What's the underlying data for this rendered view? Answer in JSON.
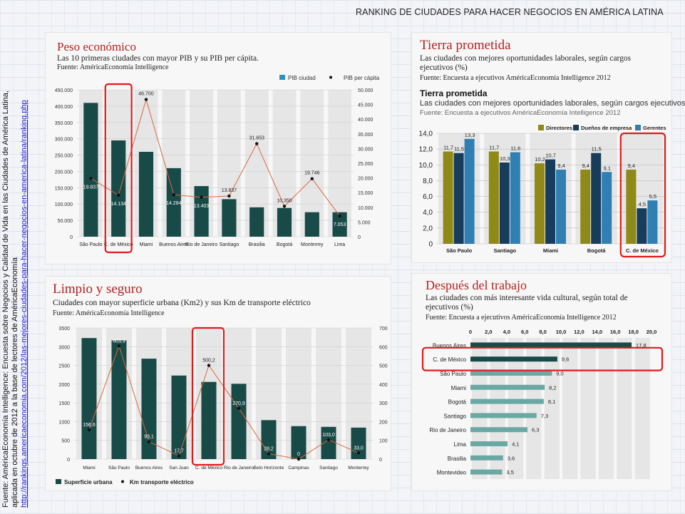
{
  "page": {
    "title": "RANKING DE CIUDADES PARA HACER NEGOCIOS EN AMÉRICA LATINA",
    "source_lines": [
      "Fuente: AméricaEconomía Intelligence: Encuesta sobre Negocios y Calidad de Vida en las Ciudades de América Latina,",
      "aplicada en octubre de 2012 a la base de lectores de AméricaEconomía",
      "http://rankings.americaeconomia.com/2012/las-mejores-ciudades-para-hacer-negocios-en-america-latina/ranking.php"
    ]
  },
  "panels": {
    "peso": {
      "title": "Peso económico",
      "subtitle": "Las 10 primeras ciudades con mayor PIB y su PIB per cápita.",
      "source": "Fuente: AméricaEconomía Intelligence"
    },
    "tierra": {
      "title": "Tierra prometida",
      "subtitle": "Las ciudades con mejores oportunidades laborales, según cargos ejecutivos (%)",
      "source": "Fuente: Encuesta a ejecutivos AméricaEconomía Intelligence 2012",
      "inner_title": "Tierra prometida",
      "inner_subtitle": "Las ciudades con mejores oportunidades laborales, según cargos ejecutivos (%)",
      "inner_source": "Fuente: Encuesta a ejecutivos AméricaEconomía Intelligence 2012"
    },
    "limpio": {
      "title": "Limpio y seguro",
      "subtitle": "Ciudades con mayor superficie urbana (Km2) y sus Km de transporte eléctrico",
      "source": "Fuente: AméricaEconomía Intelligence"
    },
    "despues": {
      "title": "Después del trabajo",
      "subtitle": "Las ciudades con más interesante vida cultural, según total de ejecutivos (%)",
      "source": "Fuente: Encuesta a ejecutivos AméricaEconomía Intelligence 2012"
    }
  },
  "colors": {
    "bar_dark": "#184a48",
    "line": "#d86a3c",
    "highlight": "#e01b1b",
    "olive": "#8f8918",
    "navy": "#173c5c",
    "blue": "#2f7fb3",
    "teal_light": "#6aa8a4",
    "title_red": "#b32222"
  },
  "chart_data": [
    {
      "id": "peso",
      "type": "bar",
      "categories": [
        "São Paulo",
        "C. de México",
        "Miami",
        "Buenos Aires",
        "Rio de Janeiro",
        "Santiago",
        "Brasilia",
        "Bogotá",
        "Monterrey",
        "Lima"
      ],
      "series": [
        {
          "name": "PIB ciudad",
          "type": "bar",
          "axis": "left",
          "values": [
            410000,
            295000,
            260000,
            210000,
            155000,
            115000,
            90000,
            88000,
            75000,
            75000
          ]
        },
        {
          "name": "PIB per cápita",
          "type": "line",
          "axis": "right",
          "values": [
            19837,
            14134,
            46700,
            14284,
            13403,
            13837,
            31653,
            10350,
            19746,
            7053
          ],
          "labels": [
            "19.837",
            "14.134",
            "46.700",
            "14.284",
            "13.403",
            "13.837",
            "31.653",
            "10.350",
            "19.746",
            "7.053"
          ]
        }
      ],
      "ylim_left": [
        0,
        450000
      ],
      "yticks_left": [
        "0",
        "50.000",
        "100.000",
        "150.000",
        "200.000",
        "250.000",
        "300.000",
        "350.000",
        "400.000",
        "450.000"
      ],
      "ylim_right": [
        0,
        50000
      ],
      "yticks_right": [
        "0",
        "5.000",
        "10.000",
        "15.000",
        "20.000",
        "25.000",
        "30.000",
        "35.000",
        "40.000",
        "45.000",
        "50.000"
      ],
      "highlight": "C. de México"
    },
    {
      "id": "tierra",
      "type": "bar",
      "categories": [
        "São Paulo",
        "Santiago",
        "Miami",
        "Bogotá",
        "C. de México"
      ],
      "series": [
        {
          "name": "Directores",
          "values": [
            11.7,
            11.7,
            10.2,
            9.4,
            9.4
          ],
          "labels": [
            "11,7",
            "11,7",
            "10,2",
            "9,4",
            "9,4"
          ]
        },
        {
          "name": "Dueños de empresa",
          "values": [
            11.5,
            10.3,
            10.7,
            11.5,
            4.5
          ],
          "labels": [
            "11,5",
            "10,3",
            "10,7",
            "11,5",
            "4,5"
          ]
        },
        {
          "name": "Gerentes",
          "values": [
            13.3,
            11.6,
            9.4,
            9.1,
            5.5
          ],
          "labels": [
            "13,3",
            "11,6",
            "9,4",
            "9,1",
            "5,5"
          ]
        }
      ],
      "ylim": [
        0,
        14
      ],
      "yticks": [
        "0",
        "2,0",
        "4,0",
        "6,0",
        "8,0",
        "10,0",
        "12,0",
        "14,0"
      ],
      "highlight": "C. de México"
    },
    {
      "id": "limpio",
      "type": "bar",
      "categories": [
        "Miami",
        "São Paulo",
        "Buenos Aires",
        "San Juan",
        "C. de México",
        "Rio de Janeiro",
        "Belo Horizonte",
        "Campinas",
        "Santiago",
        "Monterrey"
      ],
      "series": [
        {
          "name": "Superficie urbana",
          "type": "bar",
          "axis": "left",
          "values": [
            3230,
            3170,
            2680,
            2230,
            2060,
            2010,
            1040,
            880,
            860,
            840
          ]
        },
        {
          "name": "Km transporte eléctrico",
          "type": "line",
          "axis": "right",
          "values": [
            156.6,
            603.9,
            93.1,
            17.7,
            500.2,
            270.9,
            28.2,
            0,
            103.0,
            33.0
          ],
          "labels": [
            "156,6",
            "603,9",
            "93,1",
            "17,7",
            "500,2",
            "270,9",
            "28,2",
            "0",
            "103,0",
            "33,0"
          ]
        }
      ],
      "ylim_left": [
        0,
        3500
      ],
      "yticks_left": [
        "0",
        "500",
        "1000",
        "1500",
        "2000",
        "2500",
        "3000",
        "3500"
      ],
      "ylim_right": [
        0,
        700
      ],
      "yticks_right": [
        "0",
        "100",
        "200",
        "300",
        "400",
        "500",
        "600",
        "700"
      ],
      "highlight": "C. de México"
    },
    {
      "id": "despues",
      "type": "bar",
      "orientation": "horizontal",
      "categories": [
        "Buenos Aires",
        "C. de México",
        "São Paulo",
        "Miami",
        "Bogotá",
        "Santiago",
        "Rio de Janeiro",
        "Lima",
        "Brasilia",
        "Montevideo"
      ],
      "values": [
        17.8,
        9.6,
        9.0,
        8.2,
        8.1,
        7.3,
        6.3,
        4.1,
        3.6,
        3.5
      ],
      "labels": [
        "17,8",
        "9,6",
        "9,0",
        "8,2",
        "8,1",
        "7,3",
        "6,3",
        "4,1",
        "3,6",
        "3,5"
      ],
      "xlim": [
        0,
        20
      ],
      "xticks": [
        "0",
        "2,0",
        "4,0",
        "6,0",
        "8,0",
        "10,0",
        "12,0",
        "14,0",
        "16,0",
        "18,0",
        "20,0"
      ],
      "highlight": "C. de México"
    }
  ]
}
